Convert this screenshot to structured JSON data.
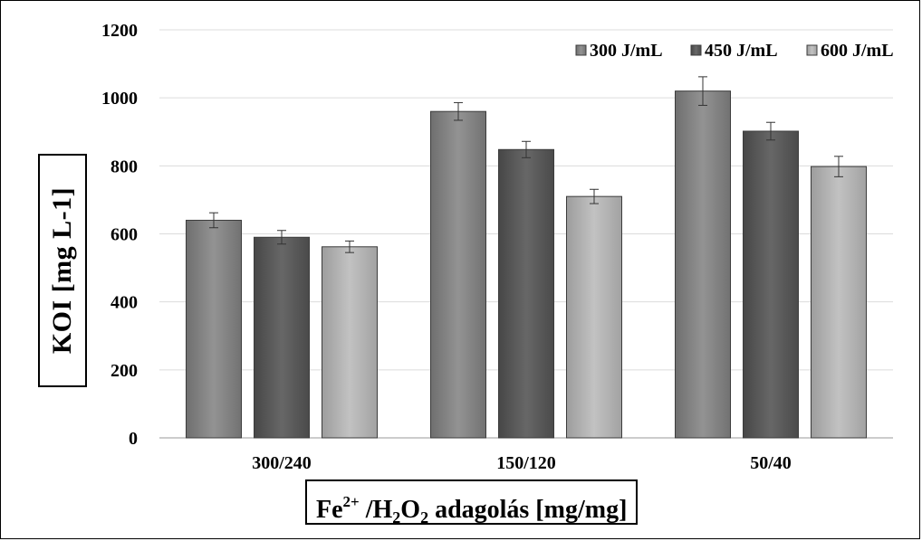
{
  "chart_data": {
    "type": "bar",
    "categories": [
      "300/240",
      "150/120",
      "50/40"
    ],
    "series": [
      {
        "name": "300 J/mL",
        "values": [
          640,
          960,
          1020
        ],
        "errors": [
          22,
          26,
          42
        ],
        "color": "#8a8a8a"
      },
      {
        "name": "450 J/mL",
        "values": [
          590,
          848,
          902
        ],
        "errors": [
          20,
          24,
          26
        ],
        "color": "#5e5e5e"
      },
      {
        "name": "600 J/mL",
        "values": [
          562,
          710,
          798
        ],
        "errors": [
          17,
          21,
          30
        ],
        "color": "#b3b3b3"
      }
    ],
    "ylim": [
      0,
      1200
    ],
    "yticks": [
      "0",
      "200",
      "400",
      "600",
      "800",
      "1000",
      "1200"
    ],
    "ylabel": "KOI [mg L-1]",
    "xlabel": {
      "fe": "Fe",
      "fe_charge": "2+",
      "sep": " /H",
      "h_sub": "2",
      "o": "O",
      "o_sub": "2",
      "rest": " adagolás  [mg/mg]"
    },
    "legend_position": "top-right",
    "grid": true
  }
}
